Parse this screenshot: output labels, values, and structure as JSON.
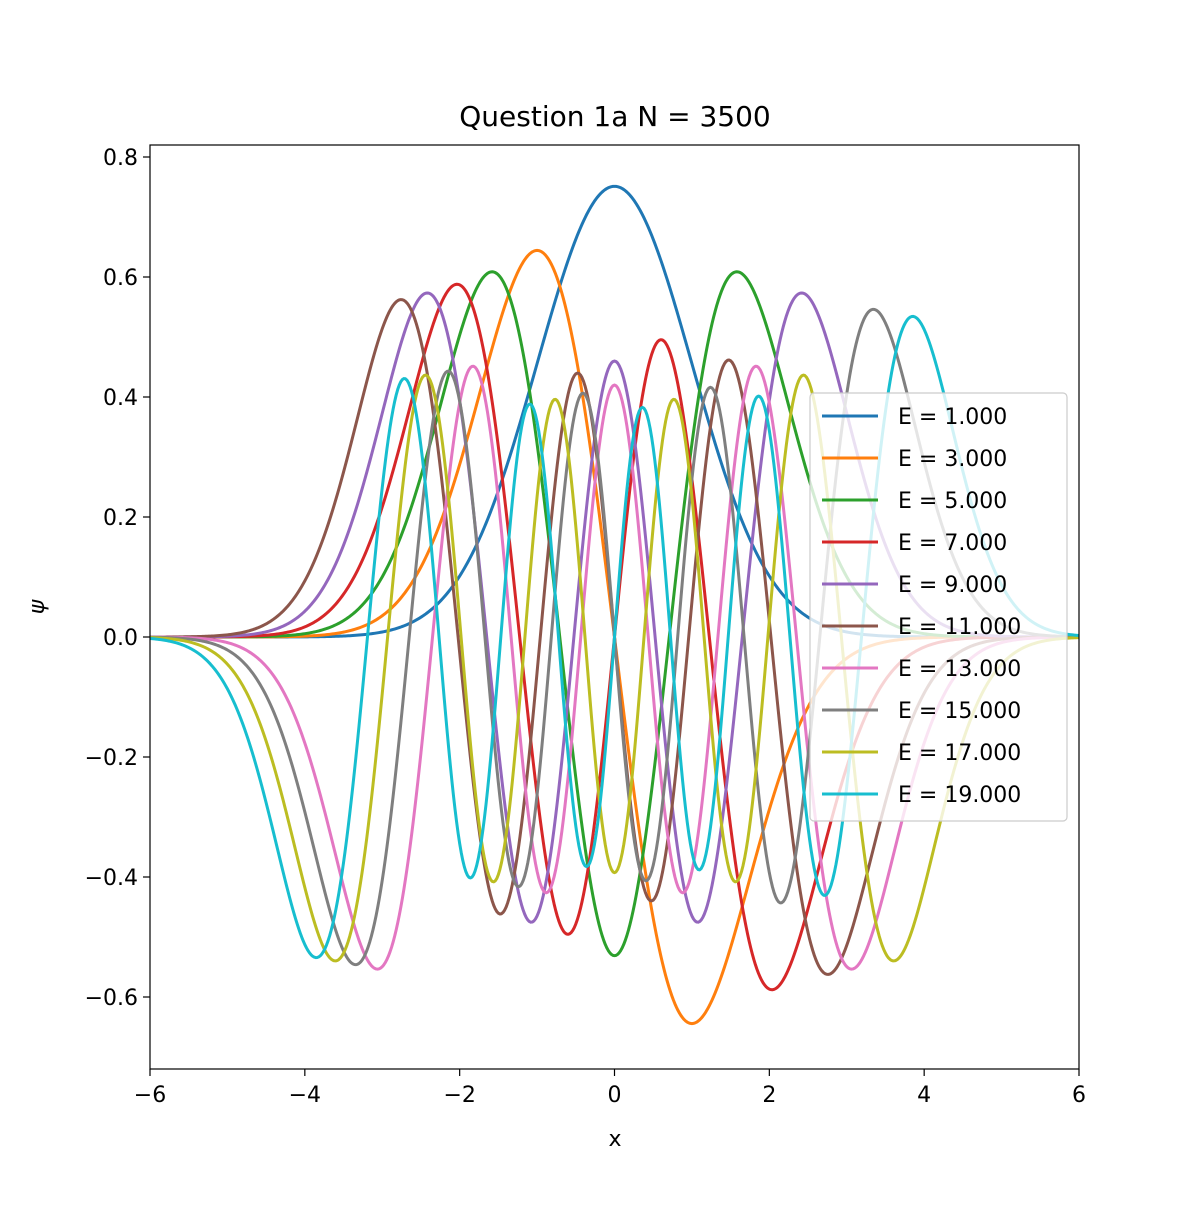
{
  "chart_data": {
    "type": "line",
    "title": "Question 1a N = 3500",
    "xlabel": "x",
    "ylabel": "ψ",
    "xlim": [
      -6,
      6
    ],
    "ylim": [
      -0.72,
      0.82
    ],
    "xticks": [
      -6,
      -4,
      -2,
      0,
      2,
      4,
      6
    ],
    "xtick_labels": [
      "−6",
      "−4",
      "−2",
      "0",
      "2",
      "4",
      "6"
    ],
    "yticks": [
      -0.6,
      -0.4,
      -0.2,
      0.0,
      0.2,
      0.4,
      0.6,
      0.8
    ],
    "ytick_labels": [
      "−0.6",
      "−0.4",
      "−0.2",
      "0.0",
      "0.2",
      "0.4",
      "0.6",
      "0.8"
    ],
    "grid": false,
    "legend_position": "center-right",
    "x_sample_step": 0.02,
    "series": [
      {
        "name": "E = 1.000",
        "color": "#1f77b4",
        "n": 0,
        "sign": 1,
        "energy": 1.0
      },
      {
        "name": "E = 3.000",
        "color": "#ff7f0e",
        "n": 1,
        "sign": -1,
        "energy": 3.0
      },
      {
        "name": "E = 5.000",
        "color": "#2ca02c",
        "n": 2,
        "sign": 1,
        "energy": 5.0
      },
      {
        "name": "E = 7.000",
        "color": "#d62728",
        "n": 3,
        "sign": -1,
        "energy": 7.0
      },
      {
        "name": "E = 9.000",
        "color": "#9467bd",
        "n": 4,
        "sign": 1,
        "energy": 9.0
      },
      {
        "name": "E = 11.000",
        "color": "#8c564b",
        "n": 5,
        "sign": -1,
        "energy": 11.0
      },
      {
        "name": "E = 13.000",
        "color": "#e377c2",
        "n": 6,
        "sign": -1,
        "energy": 13.0
      },
      {
        "name": "E = 15.000",
        "color": "#7f7f7f",
        "n": 7,
        "sign": 1,
        "energy": 15.0
      },
      {
        "name": "E = 17.000",
        "color": "#bcbd22",
        "n": 8,
        "sign": -1,
        "energy": 17.0
      },
      {
        "name": "E = 19.000",
        "color": "#17becf",
        "n": 9,
        "sign": 1,
        "energy": 19.0
      }
    ]
  }
}
